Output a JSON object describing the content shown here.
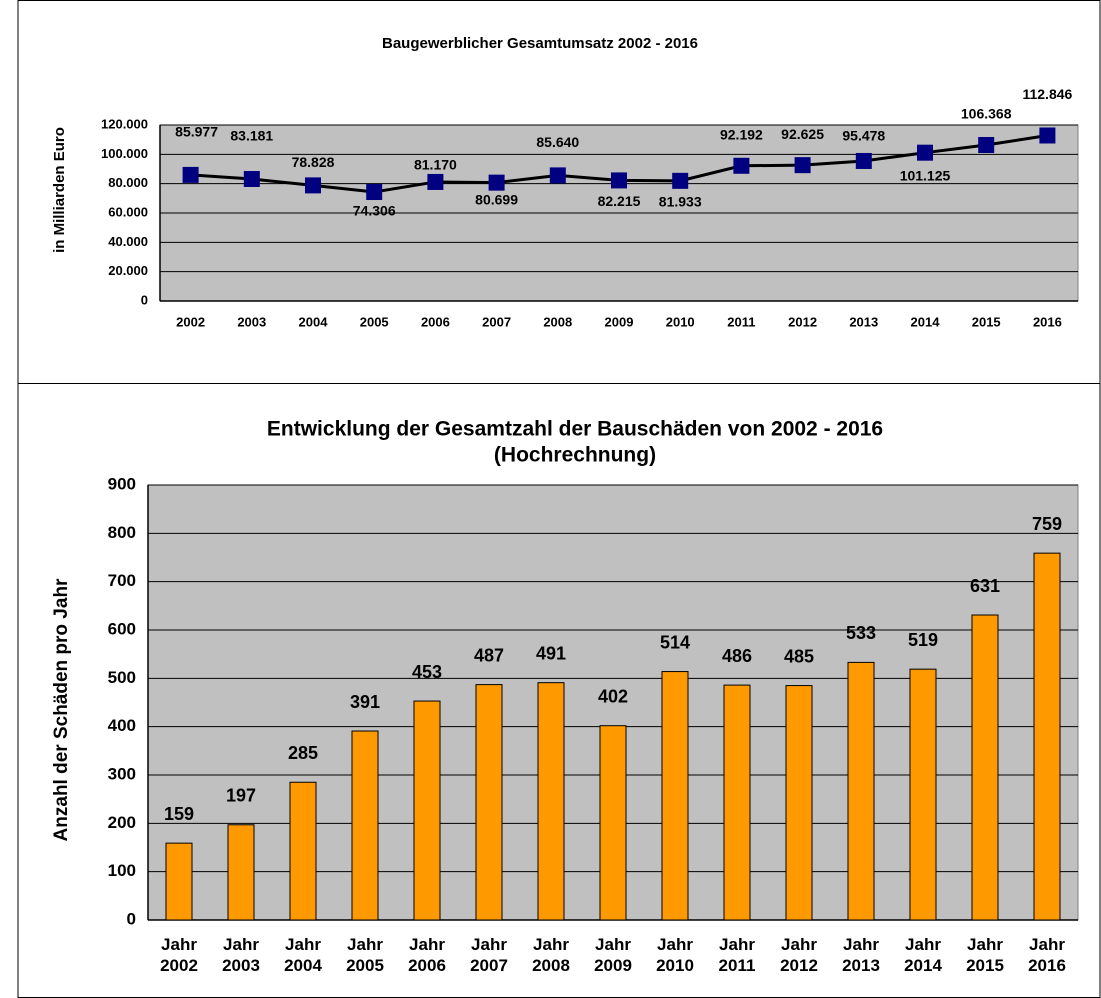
{
  "chart_data": [
    {
      "type": "line",
      "title": "Baugewerblicher Gesamtumsatz 2002 - 2016",
      "y_label": "in Milliarden Euro",
      "categories": [
        "2002",
        "2003",
        "2004",
        "2005",
        "2006",
        "2007",
        "2008",
        "2009",
        "2010",
        "2011",
        "2012",
        "2013",
        "2014",
        "2015",
        "2016"
      ],
      "values": [
        85977,
        83181,
        78828,
        74306,
        81170,
        80699,
        85640,
        82215,
        81933,
        92192,
        92625,
        95478,
        101125,
        106368,
        112846
      ],
      "value_labels": [
        "85.977",
        "83.181",
        "78.828",
        "74.306",
        "81.170",
        "80.699",
        "85.640",
        "82.215",
        "81.933",
        "92.192",
        "92.625",
        "95.478",
        "101.125",
        "106.368",
        "112.846"
      ],
      "color": "#000000",
      "marker_color": "#000080",
      "ylim": [
        0,
        120000
      ],
      "yticks": [
        0,
        {
          "value": 20000,
          "label": "20.000"
        },
        {
          "value": 40000,
          "label": "40.000"
        },
        {
          "value": 60000,
          "label": "60.000"
        },
        {
          "value": 80000,
          "label": "80.000"
        },
        {
          "value": 100000,
          "label": "100.000"
        },
        {
          "value": 120000,
          "label": "120.000"
        }
      ],
      "grid": true
    },
    {
      "type": "bar",
      "title": "Entwicklung der Gesamtzahl der Bauschäden von 2002 - 2016",
      "subtitle": "(Hochrechnung)",
      "y_label": "Anzahl der Schäden pro Jahr",
      "categories": [
        "Jahr 2002",
        "Jahr 2003",
        "Jahr 2004",
        "Jahr 2005",
        "Jahr 2006",
        "Jahr 2007",
        "Jahr 2008",
        "Jahr 2009",
        "Jahr 2010",
        "Jahr 2011",
        "Jahr 2012",
        "Jahr 2013",
        "Jahr 2014",
        "Jahr 2015",
        "Jahr 2016"
      ],
      "values": [
        159,
        197,
        285,
        391,
        453,
        487,
        491,
        402,
        514,
        486,
        485,
        533,
        519,
        631,
        759
      ],
      "color": "#ff9900",
      "ylim": [
        0,
        900
      ],
      "yticks": [
        0,
        100,
        200,
        300,
        400,
        500,
        600,
        700,
        800,
        900
      ],
      "grid": true
    }
  ]
}
